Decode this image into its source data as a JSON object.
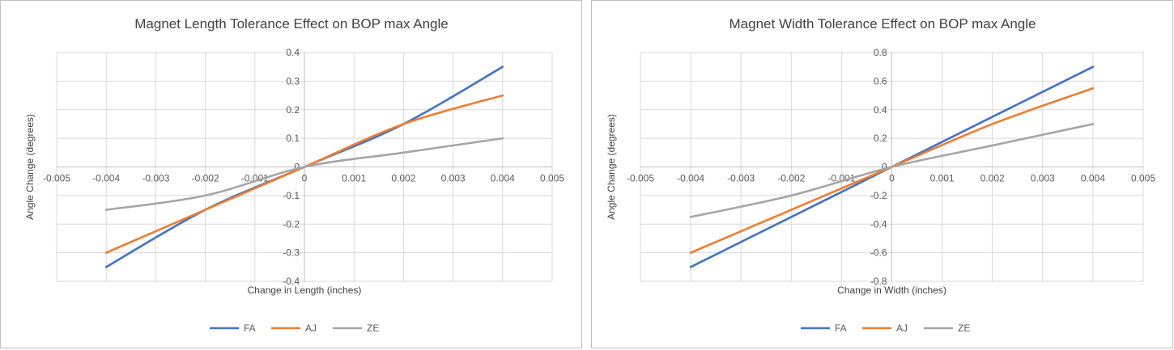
{
  "colors": {
    "FA": "#4472c4",
    "AJ": "#ed7d31",
    "ZE": "#a5a5a5",
    "grid": "#d9d9d9"
  },
  "chart_data": [
    {
      "type": "line",
      "title": "Magnet Length Tolerance Effect on BOP max Angle",
      "xlabel": "Change in Length (inches)",
      "ylabel": "Angle Change (degrees)",
      "xlim": [
        -0.005,
        0.005
      ],
      "ylim": [
        -0.4,
        0.4
      ],
      "xticks": [
        "-0.005",
        "-0.004",
        "-0.003",
        "-0.002",
        "-0.001",
        "0",
        "0.001",
        "0.002",
        "0.003",
        "0.004",
        "0.005"
      ],
      "yticks": [
        "0.4",
        "0.3",
        "0.2",
        "0.1",
        "0",
        "-0.1",
        "-0.2",
        "-0.3",
        "-0.4"
      ],
      "grid": true,
      "legend": "bottom",
      "x": [
        -0.004,
        -0.002,
        0,
        0.002,
        0.004
      ],
      "series": [
        {
          "name": "FA",
          "values": [
            -0.35,
            -0.15,
            0,
            0.15,
            0.35
          ]
        },
        {
          "name": "AJ",
          "values": [
            -0.3,
            -0.15,
            0,
            0.15,
            0.25
          ]
        },
        {
          "name": "ZE",
          "values": [
            -0.15,
            -0.1,
            0,
            0.05,
            0.1
          ]
        }
      ]
    },
    {
      "type": "line",
      "title": "Magnet Width Tolerance Effect on BOP max Angle",
      "xlabel": "Change in Width (inches)",
      "ylabel": "Angle Change (degrees)",
      "xlim": [
        -0.005,
        0.005
      ],
      "ylim": [
        -0.8,
        0.8
      ],
      "xticks": [
        "-0.005",
        "-0.004",
        "-0.003",
        "-0.002",
        "-0.001",
        "0",
        "0.001",
        "0.002",
        "0.003",
        "0.004",
        "0.005"
      ],
      "yticks": [
        "0.8",
        "0.6",
        "0.4",
        "0.2",
        "0",
        "-0.2",
        "-0.4",
        "-0.6",
        "-0.8"
      ],
      "grid": true,
      "legend": "bottom",
      "x": [
        -0.004,
        -0.002,
        0,
        0.002,
        0.004
      ],
      "series": [
        {
          "name": "FA",
          "values": [
            -0.7,
            -0.35,
            0,
            0.35,
            0.7
          ]
        },
        {
          "name": "AJ",
          "values": [
            -0.6,
            -0.3,
            0,
            0.3,
            0.55
          ]
        },
        {
          "name": "ZE",
          "values": [
            -0.35,
            -0.2,
            0,
            0.15,
            0.3
          ]
        }
      ]
    }
  ]
}
